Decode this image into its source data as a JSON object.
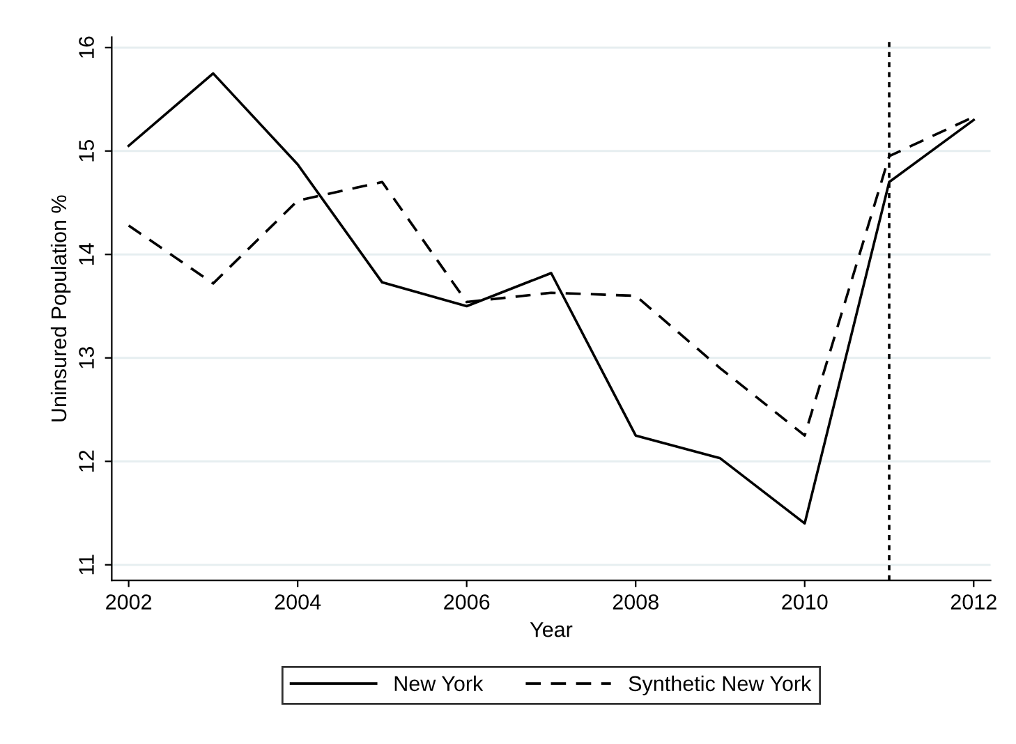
{
  "chart_data": {
    "type": "line",
    "xlabel": "Year",
    "ylabel": "Uninsured Population %",
    "x": [
      2002,
      2003,
      2004,
      2005,
      2006,
      2007,
      2008,
      2009,
      2010,
      2011,
      2012
    ],
    "series": [
      {
        "name": "New York",
        "color": "#000000",
        "line_style": "solid",
        "values": [
          15.05,
          15.75,
          14.87,
          13.73,
          13.5,
          13.82,
          12.25,
          12.03,
          11.4,
          14.7,
          15.3
        ]
      },
      {
        "name": "Synthetic New York",
        "color": "#000000",
        "line_style": "dashed",
        "values": [
          14.28,
          13.72,
          14.52,
          14.7,
          13.54,
          13.63,
          13.6,
          12.9,
          12.25,
          14.95,
          15.33
        ]
      }
    ],
    "xlim": [
      2001.8,
      2012.2
    ],
    "ylim": [
      10.85,
      16.1
    ],
    "xticks": [
      2002,
      2004,
      2006,
      2008,
      2010,
      2012
    ],
    "yticks": [
      11,
      12,
      13,
      14,
      15,
      16
    ],
    "ref_lines": [
      {
        "axis": "x",
        "value": 2011,
        "color": "#000000",
        "line_style": "dotted"
      }
    ],
    "grid": "y",
    "legend": "bottom",
    "marker": "none"
  }
}
